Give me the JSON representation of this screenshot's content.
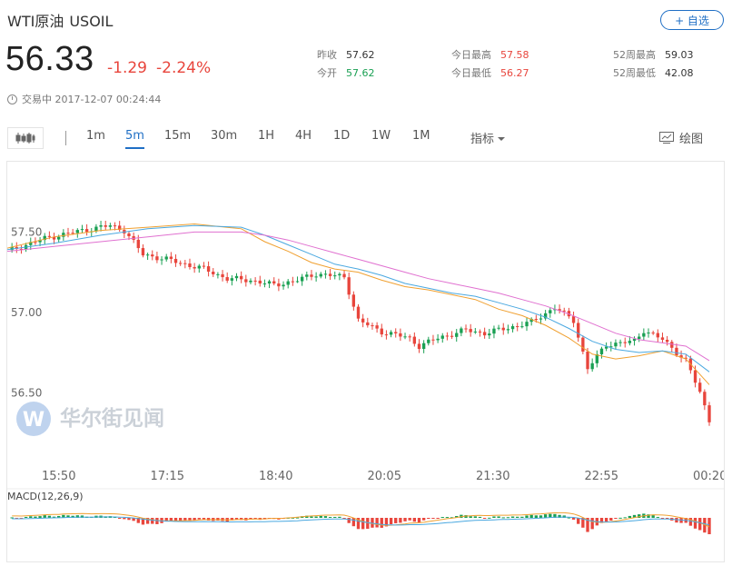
{
  "header": {
    "title": "WTI原油",
    "symbol": "USOIL",
    "add_label": "+ 自选",
    "price": "56.33",
    "change": "-1.29",
    "change_pct": "-2.24%",
    "status": "交易中 2017-12-07 00:24:44"
  },
  "stats": {
    "prev_close": {
      "label": "昨收",
      "value": "57.62"
    },
    "open": {
      "label": "今开",
      "value": "57.62"
    },
    "high": {
      "label": "今日最高",
      "value": "57.58"
    },
    "low": {
      "label": "今日最低",
      "value": "56.27"
    },
    "w52_high": {
      "label": "52周最高",
      "value": "59.03"
    },
    "w52_low": {
      "label": "52周最低",
      "value": "42.08"
    }
  },
  "toolbar": {
    "timeframes": [
      "1m",
      "5m",
      "15m",
      "30m",
      "1H",
      "4H",
      "1D",
      "1W",
      "1M"
    ],
    "active": "5m",
    "indicator_label": "指标",
    "draw_label": "绘图"
  },
  "watermark": "华尔街见闻",
  "colors": {
    "up": "#1aa053",
    "down": "#e8453c",
    "ma_fast": "#f0a030",
    "ma_mid": "#4aa8e0",
    "ma_slow": "#e070d0",
    "accent": "#1f6fc5"
  },
  "chart_data": [
    {
      "type": "candlestick",
      "yticks": [
        "57.50",
        "57.00",
        "56.50"
      ],
      "ytick_values": [
        57.5,
        57.0,
        56.5
      ],
      "ylim": [
        56.1,
        57.7
      ],
      "xticks": [
        "15:50",
        "17:15",
        "18:40",
        "20:05",
        "21:30",
        "22:55",
        "00:20"
      ],
      "ma_lines": [
        {
          "x": [
            0,
            10,
            20,
            30,
            40,
            50,
            55,
            60,
            65,
            70,
            75,
            80,
            85,
            90,
            95,
            100,
            105,
            110,
            115,
            120,
            125,
            130,
            135,
            140,
            145,
            150
          ],
          "values": [
            57.4,
            57.47,
            57.51,
            57.53,
            57.55,
            57.52,
            57.44,
            57.38,
            57.31,
            57.27,
            57.25,
            57.2,
            57.16,
            57.14,
            57.11,
            57.08,
            57.02,
            56.98,
            56.92,
            56.84,
            56.74,
            56.71,
            56.73,
            56.76,
            56.71,
            56.55
          ]
        },
        {
          "x": [
            0,
            10,
            20,
            30,
            40,
            50,
            55,
            60,
            65,
            70,
            75,
            80,
            85,
            90,
            95,
            100,
            105,
            110,
            115,
            120,
            125,
            130,
            135,
            140,
            145,
            150
          ],
          "values": [
            57.39,
            57.43,
            57.48,
            57.52,
            57.54,
            57.53,
            57.48,
            57.42,
            57.36,
            57.3,
            57.27,
            57.23,
            57.18,
            57.15,
            57.12,
            57.1,
            57.06,
            57.02,
            56.97,
            56.9,
            56.82,
            56.77,
            56.75,
            56.76,
            56.74,
            56.63
          ]
        },
        {
          "x": [
            0,
            10,
            20,
            30,
            40,
            50,
            55,
            60,
            65,
            70,
            75,
            80,
            85,
            90,
            95,
            100,
            105,
            110,
            115,
            120,
            125,
            130,
            135,
            140,
            145,
            150
          ],
          "values": [
            57.38,
            57.41,
            57.44,
            57.47,
            57.5,
            57.5,
            57.48,
            57.45,
            57.41,
            57.37,
            57.33,
            57.29,
            57.25,
            57.21,
            57.18,
            57.15,
            57.12,
            57.08,
            57.04,
            56.99,
            56.93,
            56.87,
            56.83,
            56.81,
            56.79,
            56.7
          ]
        }
      ],
      "anchors": [
        [
          0,
          57.38
        ],
        [
          8,
          57.46
        ],
        [
          16,
          57.51
        ],
        [
          22,
          57.54
        ],
        [
          25,
          57.51
        ],
        [
          29,
          57.36
        ],
        [
          34,
          57.33
        ],
        [
          38,
          57.3
        ],
        [
          42,
          57.27
        ],
        [
          47,
          57.21
        ],
        [
          52,
          57.2
        ],
        [
          57,
          57.17
        ],
        [
          62,
          57.2
        ],
        [
          66,
          57.24
        ],
        [
          72,
          57.22
        ],
        [
          75,
          56.95
        ],
        [
          80,
          56.88
        ],
        [
          86,
          56.84
        ],
        [
          88,
          56.79
        ],
        [
          92,
          56.84
        ],
        [
          98,
          56.89
        ],
        [
          102,
          56.87
        ],
        [
          108,
          56.91
        ],
        [
          112,
          56.94
        ],
        [
          117,
          57.03
        ],
        [
          121,
          56.95
        ],
        [
          124,
          56.65
        ],
        [
          128,
          56.8
        ],
        [
          134,
          56.82
        ],
        [
          136,
          56.89
        ],
        [
          140,
          56.83
        ],
        [
          145,
          56.7
        ],
        [
          148,
          56.5
        ],
        [
          150,
          56.33
        ]
      ]
    },
    {
      "type": "bar",
      "label": "MACD(12,26,9)",
      "note": "histogram with DIF/DEA lines"
    }
  ]
}
